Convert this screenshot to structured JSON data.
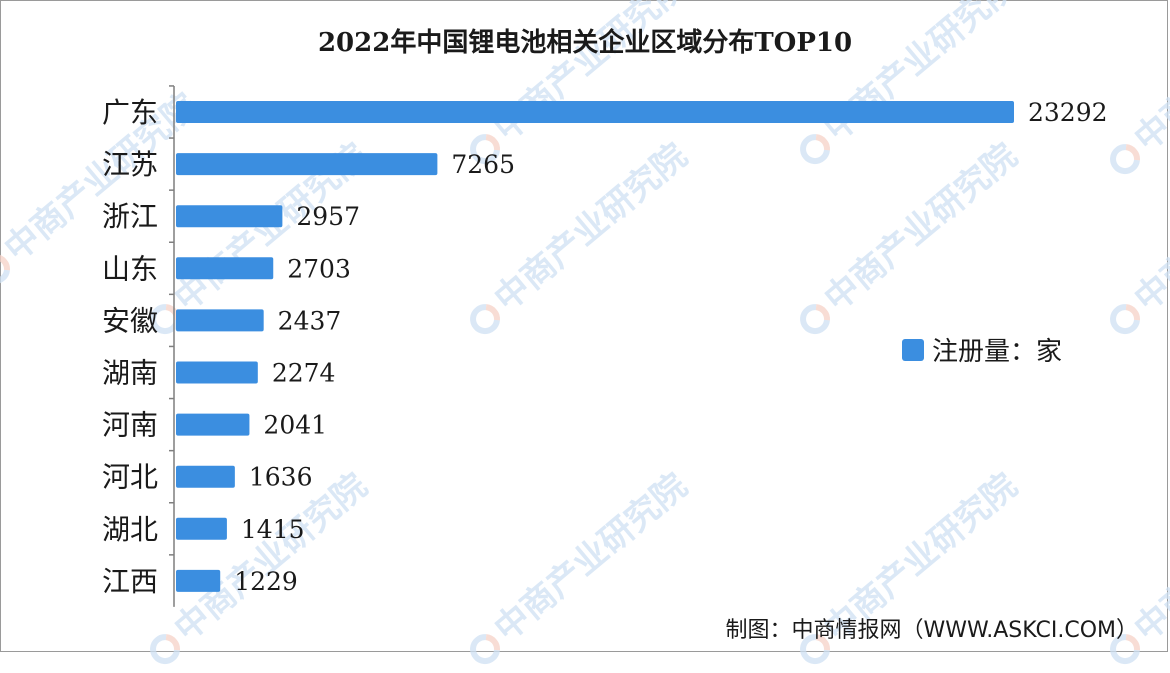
{
  "chart_data": {
    "type": "bar",
    "orientation": "horizontal",
    "title": "2022年中国锂电池相关企业区域分布TOP10",
    "categories": [
      "广东",
      "江苏",
      "浙江",
      "山东",
      "安徽",
      "湖南",
      "河南",
      "河北",
      "湖北",
      "江西"
    ],
    "series": [
      {
        "name": "注册量：家",
        "values": [
          23292,
          7265,
          2957,
          2703,
          2437,
          2274,
          2041,
          1636,
          1415,
          1229
        ],
        "color": "#3b8ee0"
      }
    ],
    "xlim": [
      0,
      23292
    ],
    "grid": false,
    "legend_position": "right"
  },
  "legend": {
    "label": "注册量：家"
  },
  "source": "制图：中商情报网（WWW.ASKCI.COM）",
  "watermark": {
    "text": "中商产业研究院"
  }
}
